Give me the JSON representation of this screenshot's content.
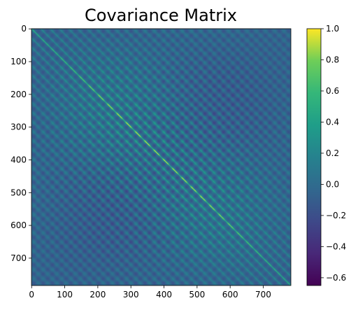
{
  "chart_data": {
    "type": "heatmap",
    "title": "Covariance Matrix",
    "xlabel": "",
    "ylabel": "",
    "matrix_size": 784,
    "pattern_period": 28,
    "x_ticks": [
      "0",
      "100",
      "200",
      "300",
      "400",
      "500",
      "600",
      "700"
    ],
    "x_tick_values": [
      0,
      100,
      200,
      300,
      400,
      500,
      600,
      700
    ],
    "y_ticks": [
      "0",
      "100",
      "200",
      "300",
      "400",
      "500",
      "600",
      "700"
    ],
    "y_tick_values": [
      0,
      100,
      200,
      300,
      400,
      500,
      600,
      700
    ],
    "y_axis_inverted": true,
    "colorbar": {
      "min": -0.65,
      "max": 1.0,
      "colormap": "viridis",
      "ticks": [
        "1.0",
        "0.8",
        "0.6",
        "0.4",
        "0.2",
        "0.0",
        "−0.2",
        "−0.4",
        "−0.6"
      ],
      "tick_values": [
        1.0,
        0.8,
        0.6,
        0.4,
        0.2,
        0.0,
        -0.2,
        -0.4,
        -0.6
      ]
    },
    "grid": false,
    "legend": "none"
  }
}
